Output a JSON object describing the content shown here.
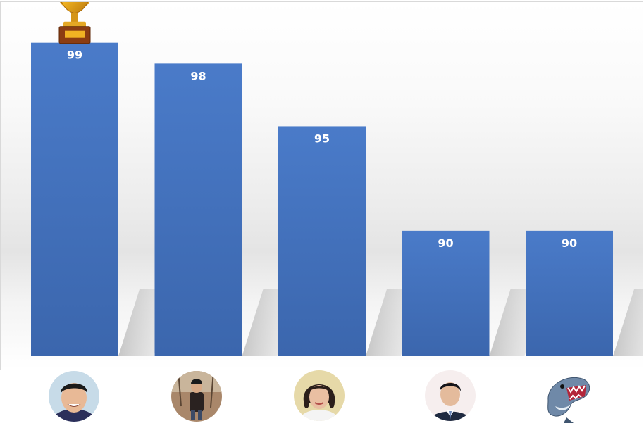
{
  "chart_data": {
    "type": "bar",
    "categories": [
      "",
      "",
      "",
      "",
      ""
    ],
    "values": [
      99,
      98,
      95,
      90,
      90
    ],
    "ylim": [
      84,
      100
    ],
    "title": "",
    "xlabel": "",
    "ylabel": "",
    "grid": false,
    "legend": "none",
    "bar_color": "#4472c4",
    "data_label_color": "#ffffff",
    "winner_marker": "trophy-icon",
    "category_markers": [
      "avatar-person-1",
      "avatar-person-2",
      "avatar-person-3",
      "avatar-person-4",
      "avatar-shark"
    ]
  }
}
